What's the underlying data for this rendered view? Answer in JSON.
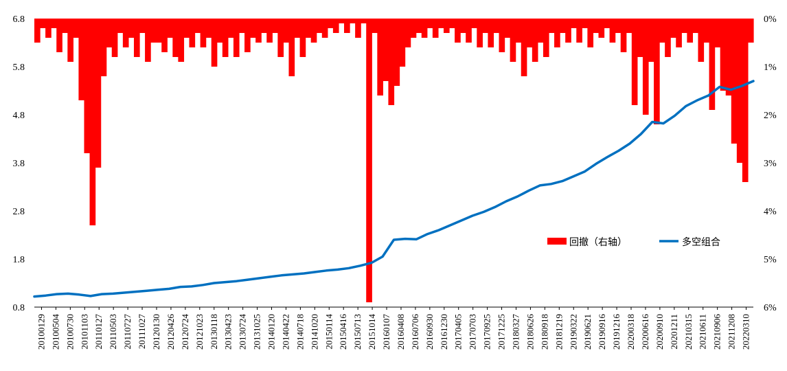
{
  "chart_data": {
    "type": "line",
    "title": "",
    "xlabel": "",
    "ylabel": "",
    "legend": [
      {
        "label": "回撤（右轴）",
        "type": "bar",
        "color": "#ff0000"
      },
      {
        "label": "多空组合",
        "type": "line",
        "color": "#0070c0"
      }
    ],
    "legend_position": "center-right",
    "y_left": {
      "lim": [
        0.8,
        6.8
      ],
      "ticks": [
        "0.8",
        "1.8",
        "2.8",
        "3.8",
        "4.8",
        "5.8",
        "6.8"
      ]
    },
    "y_right": {
      "lim": [
        0,
        6
      ],
      "inverted": true,
      "ticks": [
        "0%",
        "1%",
        "2%",
        "3%",
        "4%",
        "5%",
        "6%"
      ]
    },
    "x_tick_labels": [
      "20100129",
      "20100504",
      "20100730",
      "20101103",
      "20110127",
      "20110503",
      "20110727",
      "20111027",
      "20120130",
      "20120426",
      "20120724",
      "20121023",
      "20130118",
      "20130423",
      "20130724",
      "20131025",
      "20140120",
      "20140422",
      "20140718",
      "20141020",
      "20150114",
      "20150416",
      "20150713",
      "20151014",
      "20160107",
      "20160408",
      "20160706",
      "20160930",
      "20161230",
      "20170405",
      "20170703",
      "20170925",
      "20171225",
      "20180327",
      "20180626",
      "20180918",
      "20181219",
      "20190322",
      "20190621",
      "20190916",
      "20191216",
      "20200318",
      "20200616",
      "20200910",
      "20201211",
      "20210315",
      "20210611",
      "20210906",
      "20211208",
      "20220310"
    ],
    "series": [
      {
        "name": "多空组合",
        "axis": "left",
        "values": [
          1.02,
          1.04,
          1.07,
          1.08,
          1.06,
          1.03,
          1.07,
          1.08,
          1.1,
          1.12,
          1.14,
          1.16,
          1.18,
          1.22,
          1.23,
          1.26,
          1.3,
          1.32,
          1.34,
          1.37,
          1.4,
          1.43,
          1.46,
          1.48,
          1.5,
          1.53,
          1.56,
          1.58,
          1.61,
          1.66,
          1.72,
          1.85,
          2.2,
          2.22,
          2.21,
          2.32,
          2.4,
          2.5,
          2.6,
          2.7,
          2.78,
          2.88,
          3.0,
          3.1,
          3.22,
          3.33,
          3.36,
          3.42,
          3.52,
          3.62,
          3.78,
          3.92,
          4.05,
          4.2,
          4.4,
          4.65,
          4.62,
          4.78,
          4.98,
          5.1,
          5.2,
          5.38,
          5.32,
          5.4,
          5.5
        ]
      },
      {
        "name": "回撤（右轴）",
        "axis": "right",
        "unit": "%",
        "values": [
          0.5,
          0.2,
          0.4,
          0.2,
          0.7,
          0.3,
          0.9,
          0.4,
          1.7,
          2.8,
          4.3,
          3.1,
          1.2,
          0.6,
          0.8,
          0.3,
          0.6,
          0.4,
          0.8,
          0.3,
          0.9,
          0.5,
          0.5,
          0.7,
          0.4,
          0.8,
          0.9,
          0.4,
          0.6,
          0.3,
          0.6,
          0.4,
          1.0,
          0.5,
          0.8,
          0.4,
          0.8,
          0.3,
          0.7,
          0.4,
          0.5,
          0.3,
          0.5,
          0.3,
          0.8,
          0.5,
          1.2,
          0.4,
          0.8,
          0.4,
          0.5,
          0.3,
          0.4,
          0.2,
          0.3,
          0.1,
          0.3,
          0.1,
          0.4,
          0.1,
          5.9,
          0.3,
          1.6,
          1.3,
          1.8,
          1.4,
          1.0,
          0.6,
          0.4,
          0.3,
          0.4,
          0.2,
          0.4,
          0.2,
          0.3,
          0.2,
          0.5,
          0.3,
          0.5,
          0.2,
          0.6,
          0.3,
          0.6,
          0.3,
          0.7,
          0.4,
          0.9,
          0.5,
          1.2,
          0.6,
          0.9,
          0.5,
          0.8,
          0.3,
          0.6,
          0.3,
          0.5,
          0.2,
          0.5,
          0.2,
          0.6,
          0.3,
          0.4,
          0.2,
          0.5,
          0.3,
          0.7,
          0.3,
          1.8,
          0.8,
          2.0,
          0.9,
          2.2,
          0.5,
          0.8,
          0.4,
          0.6,
          0.3,
          0.5,
          0.3,
          0.9,
          0.5,
          1.9,
          0.6,
          1.5,
          1.6,
          2.6,
          3.0,
          3.4,
          0.5
        ]
      }
    ]
  }
}
